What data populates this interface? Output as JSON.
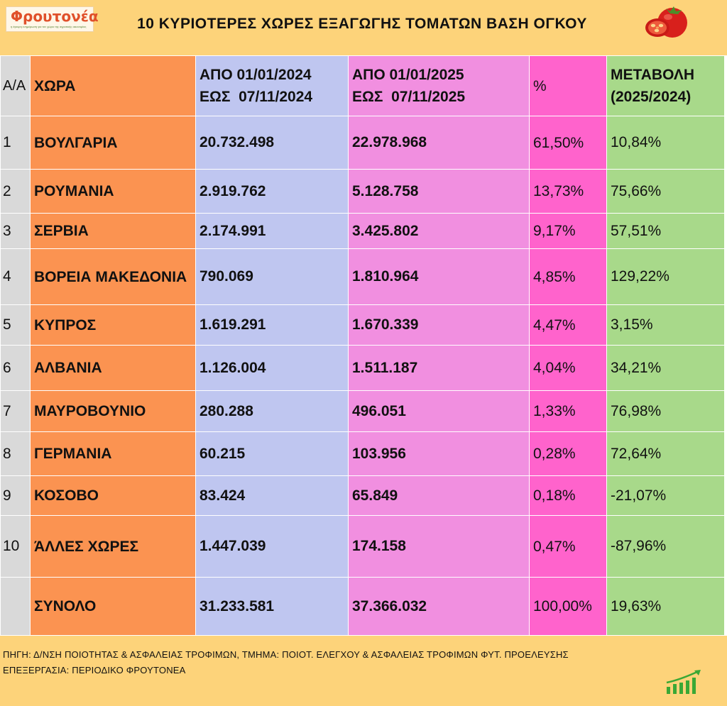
{
  "header": {
    "logo_text": "Φρουτονέα",
    "logo_tagline": "η έγκυρη ενημέρωση για τον χώρο της αγροτικής οικονομίας",
    "title": "10 ΚΥΡΙΟΤΕΡΕΣ ΧΩΡΕΣ ΕΞΑΓΩΓΗΣ ΤΟΜΑΤΩΝ ΒΑΣΗ ΟΓΚΟΥ",
    "image_icon": "tomato-icon"
  },
  "table": {
    "headers": {
      "aa": "Α/Α",
      "country": "ΧΩΡΑ",
      "v2024_line1": "ΑΠΟ 01/01/2024",
      "v2024_line2": "ΕΩΣ  07/11/2024",
      "v2025_line1": "ΑΠΟ 01/01/2025",
      "v2025_line2": "ΕΩΣ  07/11/2025",
      "pct": "%",
      "change_line1": "ΜΕΤΑΒΟΛΗ",
      "change_line2": "(2025/2024)"
    },
    "rows": [
      {
        "aa": "1",
        "country": "ΒΟΥΛΓΑΡΙΑ",
        "v2024": "20.732.498",
        "v2025": "22.978.968",
        "pct": "61,50%",
        "change": "10,84%"
      },
      {
        "aa": "2",
        "country": "ΡΟΥΜΑΝΙΑ",
        "v2024": "2.919.762",
        "v2025": "5.128.758",
        "pct": "13,73%",
        "change": "75,66%"
      },
      {
        "aa": "3",
        "country": "ΣΕΡΒΙΑ",
        "v2024": "2.174.991",
        "v2025": "3.425.802",
        "pct": "9,17%",
        "change": "57,51%"
      },
      {
        "aa": "4",
        "country": "ΒΟΡΕΙΑ ΜΑΚΕΔΟΝΙΑ",
        "v2024": "790.069",
        "v2025": "1.810.964",
        "pct": "4,85%",
        "change": "129,22%"
      },
      {
        "aa": "5",
        "country": "ΚΥΠΡΟΣ",
        "v2024": "1.619.291",
        "v2025": "1.670.339",
        "pct": "4,47%",
        "change": "3,15%"
      },
      {
        "aa": "6",
        "country": "ΑΛΒΑΝΙΑ",
        "v2024": "1.126.004",
        "v2025": "1.511.187",
        "pct": "4,04%",
        "change": "34,21%"
      },
      {
        "aa": "7",
        "country": "ΜΑΥΡΟΒΟΥΝΙΟ",
        "v2024": "280.288",
        "v2025": "496.051",
        "pct": "1,33%",
        "change": "76,98%"
      },
      {
        "aa": "8",
        "country": "ΓΕΡΜΑΝΙΑ",
        "v2024": "60.215",
        "v2025": "103.956",
        "pct": "0,28%",
        "change": "72,64%"
      },
      {
        "aa": "9",
        "country": "ΚΟΣΟΒΟ",
        "v2024": "83.424",
        "v2025": "65.849",
        "pct": "0,18%",
        "change": "-21,07%"
      },
      {
        "aa": "10",
        "country": "ΆΛΛΕΣ ΧΩΡΕΣ",
        "v2024": "1.447.039",
        "v2025": "174.158",
        "pct": "0,47%",
        "change": "-87,96%"
      },
      {
        "aa": "",
        "country": "ΣΥΝΟΛΟ",
        "v2024": "31.233.581",
        "v2025": "37.366.032",
        "pct": "100,00%",
        "change": "19,63%"
      }
    ]
  },
  "footer": {
    "source_line1": "ΠΗΓΗ: Δ/ΝΣΗ ΠΟΙΟΤΗΤΑΣ & ΑΣΦΑΛΕΙΑΣ ΤΡΟΦΙΜΩΝ, ΤΜΗΜΑ: ΠΟΙΟΤ. ΕΛΕΓΧΟΥ & ΑΣΦΑΛΕΙΑΣ ΤΡΟΦΙΜΩΝ ΦΥΤ. ΠΡΟΕΛΕΥΣΗΣ",
    "source_line2": "ΕΠΕΞΕΡΓΑΣΙΑ: ΠΕΡΙΟΔΙΚΟ ΦΡΟΥΤΟΝΕΑ",
    "image_icon": "growth-bars-icon"
  },
  "colors": {
    "header_bg": "#fdd37a",
    "aa_col": "#d9d9d9",
    "country_col": "#fb9351",
    "v2024_col": "#bfc6f0",
    "v2025_col": "#f18fe0",
    "pct_col": "#ff63cc",
    "change_col": "#a8d98a",
    "logo_red": "#e0502a"
  }
}
